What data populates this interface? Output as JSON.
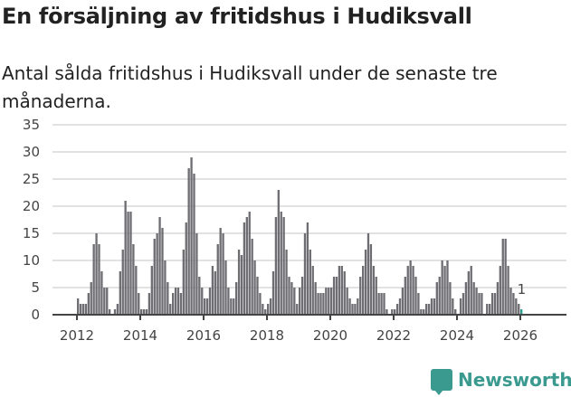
{
  "header": {
    "title": "En försäljning av fritidshus i Hudiksvall",
    "subtitle": "Antal sålda fritidshus i Hudiksvall under de senaste tre månaderna."
  },
  "brand": {
    "name": "Newsworthy",
    "color": "#3a9a8f"
  },
  "chart_data": {
    "type": "bar",
    "title": "En försäljning av fritidshus i Hudiksvall",
    "subtitle": "Antal sålda fritidshus i Hudiksvall under de senaste tre månaderna.",
    "xlabel": "",
    "ylabel": "",
    "ylim": [
      0,
      35
    ],
    "yticks": [
      0,
      5,
      10,
      15,
      20,
      25,
      30,
      35
    ],
    "xticks": [
      "2012",
      "2014",
      "2016",
      "2018",
      "2020",
      "2022",
      "2024",
      "2026"
    ],
    "grid": true,
    "start": "2012-01",
    "bar_color": "#6e6d72",
    "highlight_color": "#2a9d8f",
    "annotation": {
      "label": "1",
      "index": 168
    },
    "values": [
      3,
      2,
      2,
      2,
      4,
      6,
      13,
      15,
      13,
      8,
      5,
      5,
      1,
      0,
      1,
      2,
      8,
      12,
      21,
      19,
      19,
      13,
      9,
      4,
      1,
      1,
      1,
      4,
      9,
      14,
      15,
      18,
      16,
      10,
      6,
      2,
      4,
      5,
      5,
      4,
      12,
      17,
      27,
      29,
      26,
      15,
      7,
      5,
      3,
      3,
      5,
      9,
      8,
      13,
      16,
      15,
      10,
      5,
      3,
      3,
      6,
      12,
      11,
      17,
      18,
      19,
      14,
      10,
      7,
      4,
      2,
      1,
      2,
      3,
      8,
      18,
      23,
      19,
      18,
      12,
      7,
      6,
      5,
      2,
      5,
      7,
      15,
      17,
      12,
      9,
      6,
      4,
      4,
      4,
      5,
      5,
      5,
      7,
      7,
      9,
      9,
      8,
      5,
      3,
      2,
      2,
      3,
      7,
      9,
      12,
      15,
      13,
      9,
      7,
      4,
      4,
      4,
      1,
      0,
      1,
      1,
      2,
      3,
      5,
      7,
      9,
      10,
      9,
      7,
      4,
      1,
      1,
      2,
      2,
      3,
      3,
      6,
      7,
      10,
      9,
      10,
      6,
      3,
      1,
      0,
      3,
      4,
      6,
      8,
      9,
      6,
      5,
      4,
      4,
      0,
      2,
      2,
      4,
      4,
      6,
      9,
      14,
      14,
      9,
      5,
      4,
      3,
      2,
      1
    ]
  }
}
